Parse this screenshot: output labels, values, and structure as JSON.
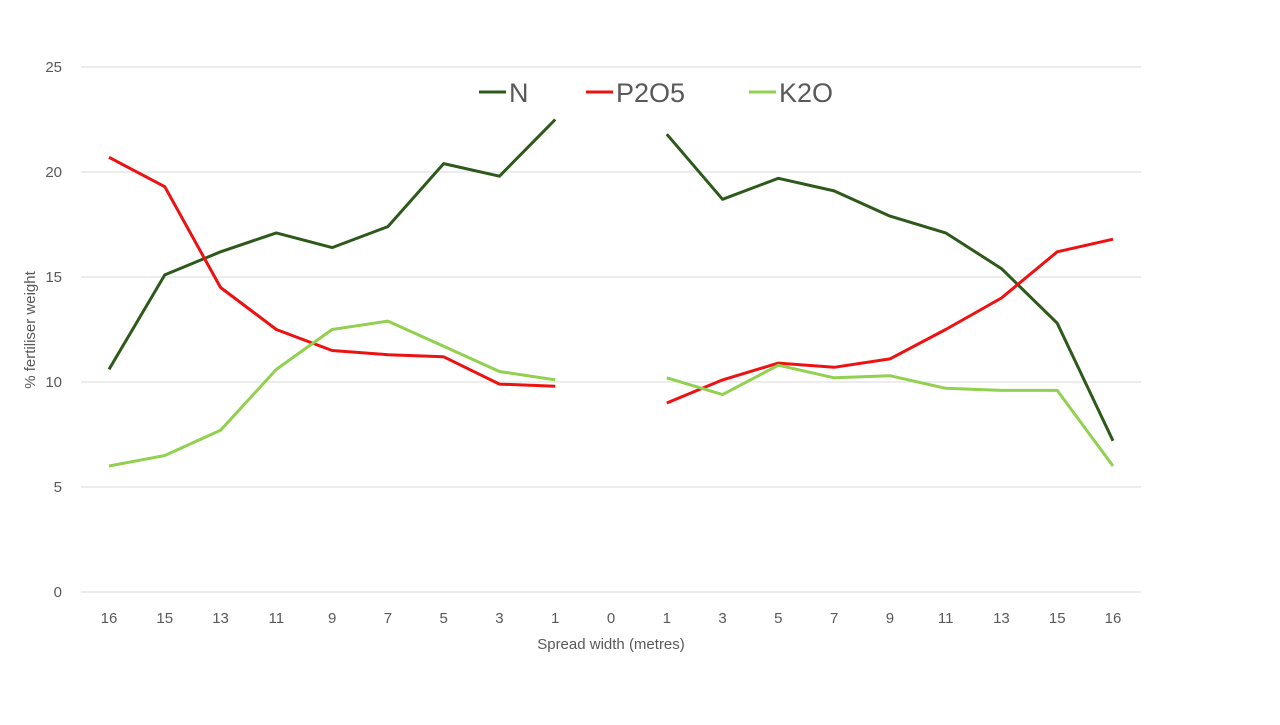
{
  "chart_data": {
    "type": "line",
    "title": "",
    "xlabel": "Spread width (metres)",
    "ylabel": "% fertiliser weight",
    "ylim": [
      0,
      25
    ],
    "yticks": [
      0,
      5,
      10,
      15,
      20,
      25
    ],
    "grid": true,
    "legend_position": "top-center",
    "categories": [
      "16",
      "15",
      "13",
      "11",
      "9",
      "7",
      "5",
      "3",
      "1",
      "0",
      "1",
      "3",
      "5",
      "7",
      "9",
      "11",
      "13",
      "15",
      "16"
    ],
    "series": [
      {
        "name": "N",
        "color": "#2d5a1b",
        "values": [
          10.6,
          15.1,
          16.2,
          17.1,
          16.4,
          17.4,
          20.4,
          19.8,
          22.5,
          null,
          21.8,
          18.7,
          19.7,
          19.1,
          17.9,
          17.1,
          15.4,
          12.8,
          7.2
        ]
      },
      {
        "name": "P2O5",
        "color": "#ee1111",
        "values": [
          20.7,
          19.3,
          14.5,
          12.5,
          11.5,
          11.3,
          11.2,
          9.9,
          9.8,
          null,
          9.0,
          10.1,
          10.9,
          10.7,
          11.1,
          12.5,
          14.0,
          16.2,
          16.8
        ]
      },
      {
        "name": "K2O",
        "color": "#92d050",
        "values": [
          6.0,
          6.5,
          7.7,
          10.6,
          12.5,
          12.9,
          11.7,
          10.5,
          10.1,
          null,
          10.2,
          9.4,
          10.8,
          10.2,
          10.3,
          9.7,
          9.6,
          9.6,
          6.0
        ]
      }
    ]
  }
}
